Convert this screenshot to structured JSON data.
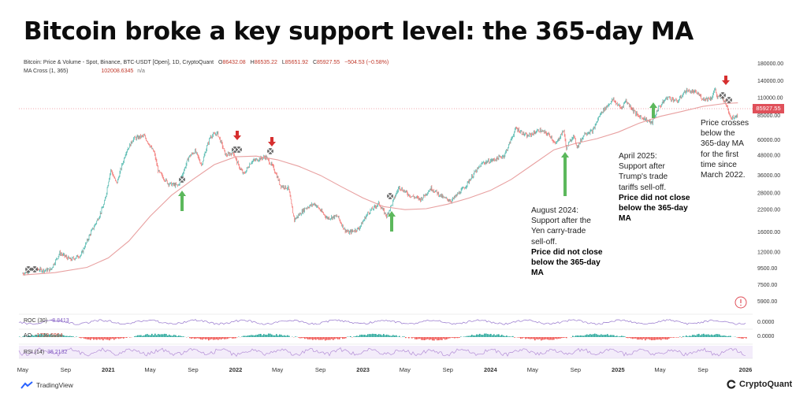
{
  "title": "Bitcoin broke a key support level: the 365-day MA",
  "legend": {
    "series_label": "Bitcoin: Price & Volume - Spot, Binance, BTC-USDT [Open], 1D, CryptoQuant",
    "o_key": "O",
    "o_val": "86432.08",
    "h_key": "H",
    "h_val": "86535.22",
    "l_key": "L",
    "l_val": "85651.92",
    "c_key": "C",
    "c_val": "85927.55",
    "change": "−504.53 (−0.58%)",
    "ma_label": "MA Cross (1, 365)",
    "ma_val": "102008.6345",
    "ma_na": "n/a"
  },
  "price_tag": "85927.55",
  "annotations": {
    "aug2024": {
      "lines": [
        "August 2024:",
        "Support after the",
        "Yen carry-trade",
        "sell-off."
      ],
      "bold": [
        "Price did not close",
        "below the 365-day",
        "MA"
      ]
    },
    "apr2025": {
      "lines": [
        "April 2025:",
        "Support after",
        "Trump's trade",
        "tariffs sell-off."
      ],
      "bold": [
        "Price did not close",
        "below the 365-day",
        "MA"
      ]
    },
    "cross": {
      "lines": [
        "Price crosses",
        "below the",
        "365-day MA",
        "for the first",
        "time since",
        "March 2022."
      ]
    }
  },
  "indicators": {
    "roc": {
      "label": "ROC (30)",
      "value": "-8.8413",
      "axis": "0.0000"
    },
    "ao": {
      "label": "AO",
      "value": "-1758.6964",
      "axis": "0.0000"
    },
    "rsi": {
      "label": "RSI (14)",
      "value": "36.2132"
    }
  },
  "footer": {
    "tradingview": "TradingView",
    "cryptoquant": "CryptoQuant"
  },
  "colors": {
    "up": "#26a69a",
    "down": "#ef5350",
    "ma": "#e8a0a0",
    "arrow_up": "#5cb85c",
    "arrow_down": "#d62f2f",
    "roc": "#9575cd",
    "rsi": "#b38ed6"
  },
  "icons": [
    "tradingview-logo-icon",
    "cryptoquant-logo-icon",
    "alert-clock-icon"
  ],
  "chart_data": {
    "type": "line",
    "y_scale": "log",
    "y_ticks": [
      "180000.00",
      "140000.00",
      "110000.00",
      "85000.00",
      "60000.00",
      "48000.00",
      "36000.00",
      "28000.00",
      "22000.00",
      "16000.00",
      "12000.00",
      "9500.00",
      "7500.00",
      "5900.00"
    ],
    "x_ticks": [
      "May",
      "Sep",
      "2021",
      "May",
      "Sep",
      "2022",
      "May",
      "Sep",
      "2023",
      "May",
      "Sep",
      "2024",
      "May",
      "Sep",
      "2025",
      "May",
      "Sep",
      "2026"
    ],
    "series": [
      {
        "dates": [
          "2020-05-01",
          "2020-06-01",
          "2020-07-01",
          "2020-07-20",
          "2020-08-15",
          "2020-09-15",
          "2020-10-15",
          "2020-11-10",
          "2020-12-01",
          "2020-12-20",
          "2021-01-08",
          "2021-01-25",
          "2021-02-20",
          "2021-03-14",
          "2021-04-14",
          "2021-05-12",
          "2021-05-25",
          "2021-06-22",
          "2021-07-20",
          "2021-08-20",
          "2021-09-07",
          "2021-09-25",
          "2021-10-20",
          "2021-11-10",
          "2021-12-04",
          "2021-12-25",
          "2022-01-10",
          "2022-01-24",
          "2022-02-15",
          "2022-03-28",
          "2022-04-20",
          "2022-05-10",
          "2022-06-01",
          "2022-06-18",
          "2022-07-20",
          "2022-08-15",
          "2022-09-20",
          "2022-10-20",
          "2022-11-09",
          "2022-11-21",
          "2022-12-20",
          "2023-01-15",
          "2023-02-15",
          "2023-03-10",
          "2023-04-14",
          "2023-05-15",
          "2023-06-15",
          "2023-07-15",
          "2023-08-20",
          "2023-09-11",
          "2023-10-20",
          "2023-11-15",
          "2023-12-10",
          "2024-01-10",
          "2024-02-10",
          "2024-03-14",
          "2024-04-15",
          "2024-05-20",
          "2024-06-20",
          "2024-07-05",
          "2024-07-29",
          "2024-08-05",
          "2024-08-25",
          "2024-09-06",
          "2024-09-27",
          "2024-10-20",
          "2024-11-12",
          "2024-12-05",
          "2024-12-17",
          "2025-01-10",
          "2025-01-22",
          "2025-02-25",
          "2025-03-15",
          "2025-04-08",
          "2025-04-25",
          "2025-05-22",
          "2025-06-20",
          "2025-07-14",
          "2025-08-14",
          "2025-09-01",
          "2025-09-25",
          "2025-10-06",
          "2025-10-11",
          "2025-10-25",
          "2025-11-05",
          "2025-11-21",
          "2025-12-10"
        ],
        "values": [
          8800,
          9400,
          9200,
          9300,
          11800,
          10700,
          11500,
          15500,
          19000,
          23800,
          39000,
          32000,
          50000,
          61000,
          63500,
          50000,
          38000,
          32000,
          31000,
          47000,
          51000,
          42000,
          63000,
          66000,
          48000,
          50000,
          41000,
          36500,
          44000,
          47000,
          40000,
          31000,
          30000,
          19000,
          22500,
          24000,
          19500,
          20000,
          16500,
          15800,
          16800,
          21000,
          24000,
          20000,
          30500,
          27000,
          25500,
          30000,
          26000,
          25000,
          30500,
          37000,
          43000,
          45000,
          48000,
          71000,
          63000,
          69000,
          64000,
          56000,
          69000,
          53000,
          64000,
          54000,
          66000,
          68000,
          88000,
          100000,
          107000,
          94000,
          106000,
          85000,
          82000,
          76000,
          94000,
          111000,
          104000,
          122000,
          118000,
          108000,
          109000,
          125000,
          110000,
          111000,
          101000,
          82000,
          86000
        ]
      },
      {
        "name": "MA Cross (1, 365)",
        "dates": [
          "2020-05-01",
          "2020-08-01",
          "2020-11-01",
          "2021-01-01",
          "2021-03-01",
          "2021-05-01",
          "2021-07-01",
          "2021-09-01",
          "2021-11-01",
          "2022-01-01",
          "2022-03-01",
          "2022-05-01",
          "2022-07-01",
          "2022-09-01",
          "2022-11-01",
          "2023-01-01",
          "2023-03-01",
          "2023-05-01",
          "2023-07-01",
          "2023-09-01",
          "2023-11-01",
          "2024-01-01",
          "2024-03-01",
          "2024-05-01",
          "2024-07-01",
          "2024-09-01",
          "2024-11-01",
          "2025-01-01",
          "2025-03-01",
          "2025-05-01",
          "2025-07-01",
          "2025-09-01",
          "2025-11-01",
          "2025-12-10"
        ],
        "values": [
          8600,
          8900,
          9600,
          11000,
          14000,
          20000,
          27000,
          34000,
          42000,
          47000,
          47500,
          45000,
          41000,
          36000,
          30500,
          26000,
          23000,
          22000,
          22300,
          23800,
          26000,
          29000,
          34000,
          42000,
          52000,
          57000,
          61000,
          67000,
          76000,
          84000,
          90000,
          97000,
          101000,
          102000
        ]
      }
    ]
  }
}
